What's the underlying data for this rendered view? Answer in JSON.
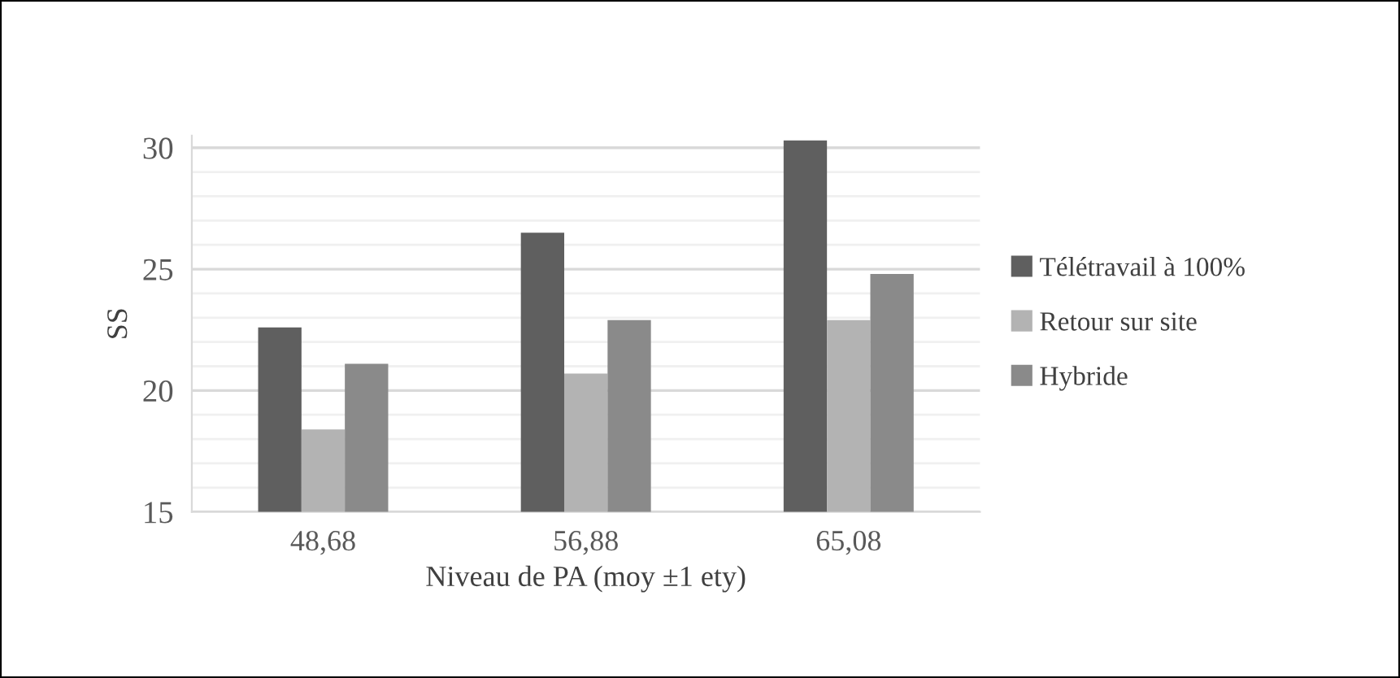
{
  "chart_data": {
    "type": "bar",
    "xlabel": "Niveau de PA (moy ±1 ety)",
    "ylabel": "SS",
    "categories": [
      "48,68",
      "56,88",
      "65,08"
    ],
    "series": [
      {
        "name": "Télétravail à 100%",
        "color": "#5f5f5f",
        "values": [
          22.6,
          26.5,
          30.3
        ]
      },
      {
        "name": "Retour sur site",
        "color": "#b3b3b3",
        "values": [
          18.4,
          20.7,
          22.9
        ]
      },
      {
        "name": "Hybride",
        "color": "#8a8a8a",
        "values": [
          21.1,
          22.9,
          24.8
        ]
      }
    ],
    "ylim": [
      15,
      30.5
    ],
    "yticks": [
      15,
      {
        "value": 16,
        "label": null
      },
      {
        "value": 17,
        "label": null
      },
      {
        "value": 18,
        "label": null
      },
      {
        "value": 19,
        "label": null
      },
      20,
      {
        "value": 21,
        "label": null
      },
      {
        "value": 22,
        "label": null
      },
      {
        "value": 23,
        "label": null
      },
      {
        "value": 24,
        "label": null
      },
      25,
      {
        "value": 26,
        "label": null
      },
      {
        "value": 27,
        "label": null
      },
      {
        "value": 28,
        "label": null
      },
      {
        "value": 29,
        "label": null
      },
      30
    ],
    "grid": "y",
    "legend": "right"
  }
}
